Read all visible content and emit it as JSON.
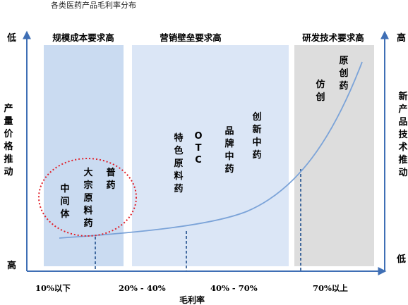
{
  "title": "各类医药产品毛利率分布",
  "zones": [
    {
      "label": "规模成本要求高",
      "color": "#cadbf1"
    },
    {
      "label": "营销壁垒要求高",
      "color": "#dbe6f6"
    },
    {
      "label": "研发技术要求高",
      "color": "#dddddd"
    }
  ],
  "left_axis": {
    "label": "产量价格推动",
    "top": "低",
    "bottom": "高"
  },
  "right_axis": {
    "label": "新产品技术推动",
    "top": "高",
    "bottom": "低"
  },
  "x_axis": {
    "name": "毛利率",
    "ticks": [
      "10%以下",
      "20% - 40%",
      "40% - 70%",
      "70%以上"
    ]
  },
  "products": [
    {
      "id": "zhongjianti",
      "label": "中间体"
    },
    {
      "id": "dazong",
      "label": "大宗原料药"
    },
    {
      "id": "puyao",
      "label": "普药"
    },
    {
      "id": "tese",
      "label": "特色原料药"
    },
    {
      "id": "otc",
      "label": "OTC"
    },
    {
      "id": "pinpai",
      "label": "品牌中药"
    },
    {
      "id": "chuangxin-zhongyao",
      "label": "创新中药"
    },
    {
      "id": "fangchuang",
      "label": "仿创"
    },
    {
      "id": "yuanchuang",
      "label": "原创药"
    }
  ],
  "colors": {
    "curve": "#7ba3d8",
    "axis": "#3f6fb5",
    "circle": "#e0202a",
    "dash": "#1f4e8c"
  }
}
